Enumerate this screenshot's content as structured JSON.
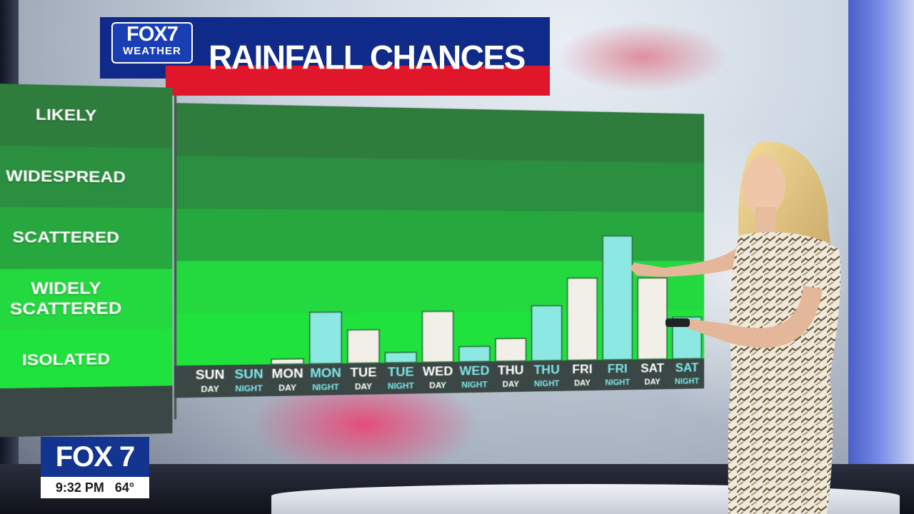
{
  "header": {
    "logo_main": "FOX7",
    "logo_sub": "WEATHER",
    "title": "RAINFALL CHANCES"
  },
  "bug": {
    "channel": "FOX 7",
    "time": "9:32 PM",
    "temp": "64°"
  },
  "colors": {
    "header_blue": "#102a8a",
    "header_red": "#e0162b",
    "band_likely": "#2e7d3d",
    "band_widespread": "#2a8f3e",
    "band_scattered": "#27a83f",
    "band_widely_scattered": "#24d83f",
    "band_isolated": "#1fe33c",
    "bar_day": "#f1efe7",
    "bar_night": "#8ce8e2",
    "night_text": "#7ee6ea"
  },
  "chart_data": {
    "type": "bar",
    "title": "RAINFALL CHANCES",
    "y_levels": [
      "ISOLATED",
      "WIDELY SCATTERED",
      "SCATTERED",
      "WIDESPREAD",
      "LIKELY"
    ],
    "ylim": [
      0,
      5
    ],
    "categories": [
      {
        "day": "SUN",
        "period": "DAY"
      },
      {
        "day": "SUN",
        "period": "NIGHT"
      },
      {
        "day": "MON",
        "period": "DAY"
      },
      {
        "day": "MON",
        "period": "NIGHT"
      },
      {
        "day": "TUE",
        "period": "DAY"
      },
      {
        "day": "TUE",
        "period": "NIGHT"
      },
      {
        "day": "WED",
        "period": "DAY"
      },
      {
        "day": "WED",
        "period": "NIGHT"
      },
      {
        "day": "THU",
        "period": "DAY"
      },
      {
        "day": "THU",
        "period": "NIGHT"
      },
      {
        "day": "FRI",
        "period": "DAY"
      },
      {
        "day": "FRI",
        "period": "NIGHT"
      },
      {
        "day": "SAT",
        "period": "DAY"
      },
      {
        "day": "SAT",
        "period": "NIGHT"
      }
    ],
    "values": [
      0,
      0,
      0.1,
      1.0,
      0.65,
      0.2,
      1.0,
      0.3,
      0.45,
      1.1,
      1.65,
      2.5,
      1.65,
      0.85
    ]
  }
}
